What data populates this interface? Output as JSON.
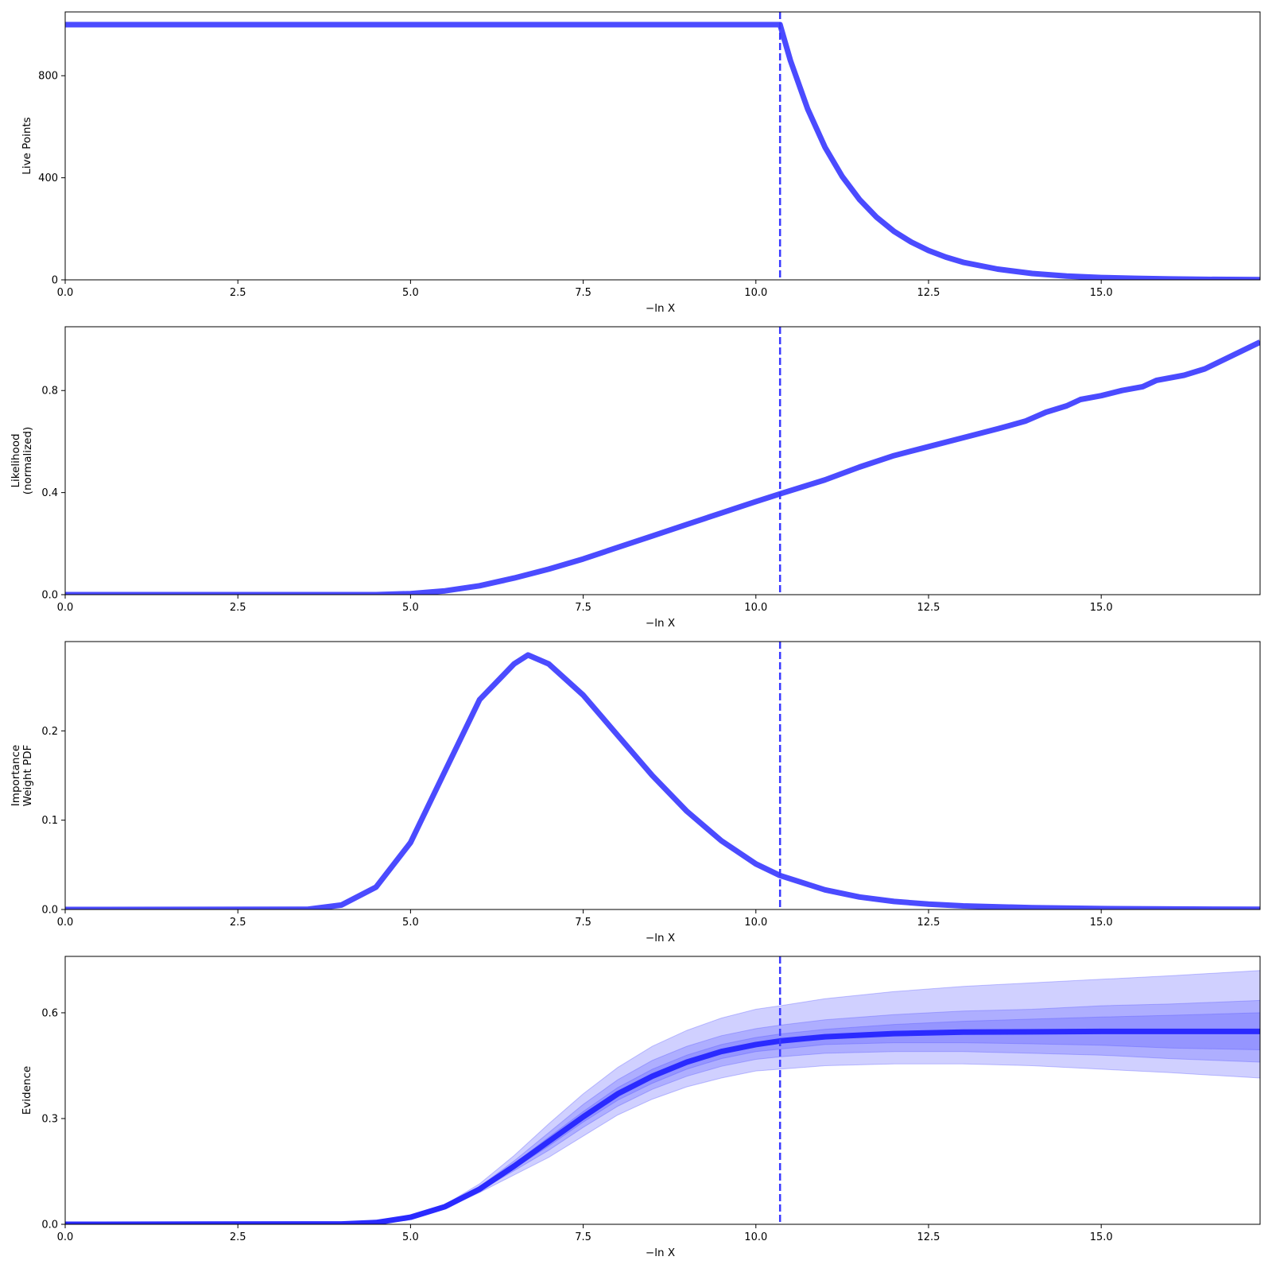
{
  "chart_data": [
    {
      "type": "line",
      "ylabel": "Live Points",
      "xlabel": "−ln X",
      "xlim": [
        0,
        17.3
      ],
      "ylim": [
        0,
        1050
      ],
      "xticks": [
        "0.0",
        "2.5",
        "5.0",
        "7.5",
        "10.0",
        "12.5",
        "15.0"
      ],
      "yticks": [
        "0",
        "400",
        "800"
      ],
      "grid": false,
      "vline_x": 10.35,
      "series": [
        {
          "x": [
            0,
            10.35,
            10.5,
            10.75,
            11,
            11.25,
            11.5,
            11.75,
            12,
            12.25,
            12.5,
            12.75,
            13,
            13.5,
            14,
            14.5,
            15,
            15.5,
            16,
            16.5,
            17.3
          ],
          "values": [
            1000,
            1000,
            860,
            670,
            520,
            405,
            315,
            245,
            190,
            148,
            115,
            89,
            69,
            42,
            25,
            15,
            9,
            6,
            3.5,
            2,
            1
          ]
        }
      ]
    },
    {
      "type": "line",
      "ylabel": "Likelihood\n(normalized)",
      "xlabel": "−ln X",
      "xlim": [
        0,
        17.3
      ],
      "ylim": [
        0,
        1.05
      ],
      "xticks": [
        "0.0",
        "2.5",
        "5.0",
        "7.5",
        "10.0",
        "12.5",
        "15.0"
      ],
      "yticks": [
        "0.0",
        "0.4",
        "0.8"
      ],
      "grid": false,
      "vline_x": 10.35,
      "series": [
        {
          "x": [
            0,
            4.5,
            5,
            5.5,
            6,
            6.5,
            7,
            7.5,
            8,
            8.5,
            9,
            9.5,
            10,
            10.35,
            11,
            11.5,
            12,
            12.5,
            13,
            13.5,
            13.9,
            14.2,
            14.5,
            14.7,
            15,
            15.3,
            15.6,
            15.8,
            16.2,
            16.5,
            17.3
          ],
          "values": [
            0,
            0,
            0.004,
            0.015,
            0.035,
            0.065,
            0.1,
            0.14,
            0.185,
            0.23,
            0.275,
            0.32,
            0.365,
            0.395,
            0.45,
            0.5,
            0.545,
            0.58,
            0.615,
            0.65,
            0.68,
            0.715,
            0.74,
            0.765,
            0.78,
            0.8,
            0.815,
            0.84,
            0.86,
            0.885,
            0.99
          ]
        }
      ]
    },
    {
      "type": "line",
      "ylabel": "Importance\nWeight PDF",
      "xlabel": "−ln X",
      "xlim": [
        0,
        17.3
      ],
      "ylim": [
        0,
        0.3
      ],
      "xticks": [
        "0.0",
        "2.5",
        "5.0",
        "7.5",
        "10.0",
        "12.5",
        "15.0"
      ],
      "yticks": [
        "0.0",
        "0.1",
        "0.2"
      ],
      "grid": false,
      "vline_x": 10.35,
      "series": [
        {
          "x": [
            0,
            3.5,
            4,
            4.5,
            5,
            5.5,
            6,
            6.5,
            6.7,
            7,
            7.5,
            8,
            8.5,
            9,
            9.5,
            10,
            10.35,
            11,
            11.5,
            12,
            12.5,
            13,
            14,
            15,
            16,
            17.3
          ],
          "values": [
            0,
            0.0002,
            0.005,
            0.025,
            0.075,
            0.155,
            0.235,
            0.275,
            0.285,
            0.275,
            0.24,
            0.195,
            0.15,
            0.11,
            0.077,
            0.051,
            0.038,
            0.022,
            0.014,
            0.009,
            0.006,
            0.004,
            0.002,
            0.001,
            0.0005,
            0.0002
          ]
        }
      ]
    },
    {
      "type": "area",
      "ylabel": "Evidence",
      "xlabel": "−ln X",
      "xlim": [
        0,
        17.3
      ],
      "ylim": [
        0,
        0.76
      ],
      "xticks": [
        "0.0",
        "2.5",
        "5.0",
        "7.5",
        "10.0",
        "12.5",
        "15.0"
      ],
      "yticks": [
        "0.0",
        "0.3",
        "0.6"
      ],
      "grid": false,
      "vline_x": 10.35,
      "x": [
        0,
        4,
        4.5,
        5,
        5.5,
        6,
        6.5,
        7,
        7.5,
        8,
        8.5,
        9,
        9.5,
        10,
        10.35,
        11,
        12,
        13,
        14,
        15,
        16,
        17.3
      ],
      "series": [
        {
          "values": [
            0,
            0.001,
            0.005,
            0.02,
            0.05,
            0.1,
            0.165,
            0.235,
            0.305,
            0.37,
            0.42,
            0.46,
            0.49,
            0.51,
            0.52,
            0.532,
            0.541,
            0.545,
            0.546,
            0.547,
            0.547,
            0.547
          ]
        }
      ],
      "bands": [
        {
          "lower": [
            0,
            0.001,
            0.004,
            0.018,
            0.045,
            0.09,
            0.14,
            0.19,
            0.25,
            0.31,
            0.355,
            0.39,
            0.415,
            0.435,
            0.44,
            0.45,
            0.455,
            0.455,
            0.45,
            0.44,
            0.43,
            0.415
          ],
          "upper": [
            0,
            0.001,
            0.006,
            0.022,
            0.056,
            0.115,
            0.195,
            0.285,
            0.37,
            0.445,
            0.505,
            0.55,
            0.585,
            0.61,
            0.62,
            0.64,
            0.66,
            0.675,
            0.685,
            0.695,
            0.705,
            0.72
          ]
        },
        {
          "lower": [
            0,
            0.001,
            0.0045,
            0.019,
            0.047,
            0.095,
            0.152,
            0.21,
            0.275,
            0.335,
            0.383,
            0.42,
            0.448,
            0.468,
            0.475,
            0.485,
            0.49,
            0.49,
            0.485,
            0.48,
            0.47,
            0.46
          ],
          "upper": [
            0,
            0.001,
            0.0055,
            0.021,
            0.053,
            0.107,
            0.18,
            0.26,
            0.34,
            0.41,
            0.465,
            0.505,
            0.535,
            0.555,
            0.565,
            0.58,
            0.595,
            0.605,
            0.61,
            0.62,
            0.625,
            0.635
          ]
        },
        {
          "lower": [
            0,
            0.001,
            0.0048,
            0.0195,
            0.048,
            0.097,
            0.158,
            0.222,
            0.29,
            0.352,
            0.4,
            0.44,
            0.47,
            0.49,
            0.497,
            0.51,
            0.515,
            0.515,
            0.512,
            0.508,
            0.5,
            0.495
          ],
          "upper": [
            0,
            0.001,
            0.0052,
            0.0205,
            0.052,
            0.103,
            0.172,
            0.247,
            0.32,
            0.388,
            0.44,
            0.48,
            0.51,
            0.53,
            0.54,
            0.553,
            0.567,
            0.576,
            0.582,
            0.588,
            0.593,
            0.6
          ]
        }
      ]
    }
  ]
}
